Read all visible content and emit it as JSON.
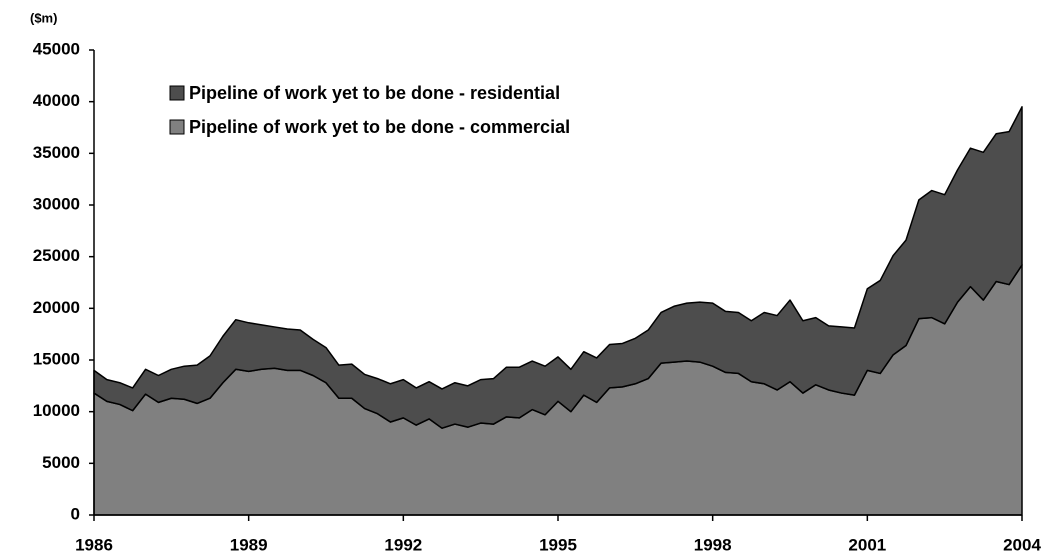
{
  "chart_data": {
    "type": "stacked_area",
    "y_unit_label": "($m)",
    "x": [
      1986,
      1986.25,
      1986.5,
      1986.75,
      1987,
      1987.25,
      1987.5,
      1987.75,
      1988,
      1988.25,
      1988.5,
      1988.75,
      1989,
      1989.25,
      1989.5,
      1989.75,
      1990,
      1990.25,
      1990.5,
      1990.75,
      1991,
      1991.25,
      1991.5,
      1991.75,
      1992,
      1992.25,
      1992.5,
      1992.75,
      1993,
      1993.25,
      1993.5,
      1993.75,
      1994,
      1994.25,
      1994.5,
      1994.75,
      1995,
      1995.25,
      1995.5,
      1995.75,
      1996,
      1996.25,
      1996.5,
      1996.75,
      1997,
      1997.25,
      1997.5,
      1997.75,
      1998,
      1998.25,
      1998.5,
      1998.75,
      1999,
      1999.25,
      1999.5,
      1999.75,
      2000,
      2000.25,
      2000.5,
      2000.75,
      2001,
      2001.25,
      2001.5,
      2001.75,
      2002,
      2002.25,
      2002.5,
      2002.75,
      2003,
      2003.25,
      2003.5,
      2003.75,
      2004
    ],
    "series": [
      {
        "name": "Pipeline of work yet to be done - residential",
        "color": "#4d4d4d",
        "values": [
          2200,
          2100,
          2100,
          2200,
          2400,
          2600,
          2800,
          3200,
          3700,
          4100,
          4500,
          4800,
          4700,
          4300,
          4000,
          4000,
          3900,
          3500,
          3400,
          3200,
          3300,
          3300,
          3400,
          3700,
          3700,
          3600,
          3600,
          3800,
          4000,
          4000,
          4200,
          4400,
          4800,
          4900,
          4700,
          4700,
          4300,
          4100,
          4200,
          4300,
          4200,
          4200,
          4400,
          4700,
          4900,
          5400,
          5600,
          5800,
          6100,
          5900,
          5900,
          5900,
          6900,
          7200,
          7900,
          7000,
          6500,
          6200,
          6400,
          6500,
          7900,
          9000,
          9600,
          10200,
          11500,
          12300,
          12500,
          12800,
          13400,
          14300,
          14300,
          14800,
          15300
        ]
      },
      {
        "name": "Pipeline of work yet to be done - commercial",
        "color": "#808080",
        "values": [
          11800,
          11000,
          10700,
          10100,
          11700,
          10900,
          11300,
          11200,
          10800,
          11300,
          12800,
          14100,
          13900,
          14100,
          14200,
          14000,
          14000,
          13500,
          12800,
          11300,
          11300,
          10300,
          9800,
          9000,
          9400,
          8700,
          9300,
          8400,
          8800,
          8500,
          8900,
          8800,
          9500,
          9400,
          10200,
          9700,
          11000,
          10000,
          11600,
          10900,
          12300,
          12400,
          12700,
          13200,
          14700,
          14800,
          14900,
          14800,
          14400,
          13800,
          13700,
          12900,
          12700,
          12100,
          12900,
          11800,
          12600,
          12100,
          11800,
          11600,
          14000,
          13700,
          15500,
          16400,
          19000,
          19100,
          18500,
          20600,
          22100,
          20800,
          22600,
          22300,
          24200
        ]
      }
    ],
    "xlim": [
      1986,
      2004
    ],
    "xticks": [
      1986,
      1989,
      1992,
      1995,
      1998,
      2001,
      2004
    ],
    "ylim": [
      0,
      45000
    ],
    "yticks": [
      0,
      5000,
      10000,
      15000,
      20000,
      25000,
      30000,
      35000,
      40000,
      45000
    ]
  }
}
